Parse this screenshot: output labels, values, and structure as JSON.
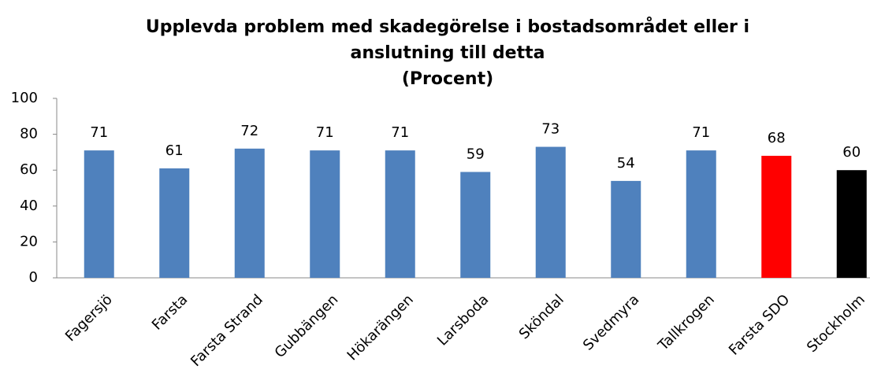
{
  "chart_data": {
    "type": "bar",
    "title": [
      "Upplevda problem med skadegörelse i bostadsområdet eller i",
      "anslutning till detta",
      "(Procent)"
    ],
    "categories": [
      "Fagersjö",
      "Farsta",
      "Farsta Strand",
      "Gubbängen",
      "Hökarängen",
      "Larsboda",
      "Sköndal",
      "Svedmyra",
      "Tallkrogen",
      "Farsta SDO",
      "Stockholm"
    ],
    "values": [
      71,
      61,
      72,
      71,
      71,
      59,
      73,
      54,
      71,
      68,
      60
    ],
    "colors": [
      "#4f81bd",
      "#4f81bd",
      "#4f81bd",
      "#4f81bd",
      "#4f81bd",
      "#4f81bd",
      "#4f81bd",
      "#4f81bd",
      "#4f81bd",
      "#ff0000",
      "#000000"
    ],
    "ylim": [
      0,
      100
    ],
    "yticks": [
      0,
      20,
      40,
      60,
      80,
      100
    ],
    "grid": false
  }
}
